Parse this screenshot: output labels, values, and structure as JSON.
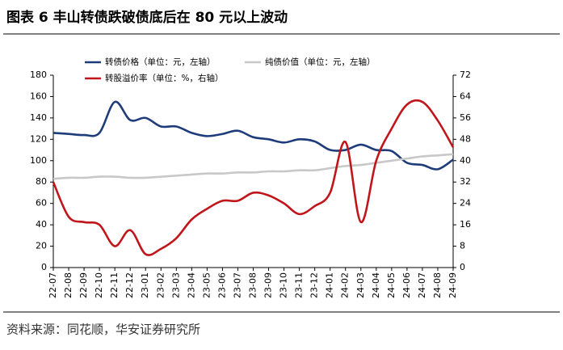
{
  "chart_data": {
    "type": "line",
    "title": "图表 6 丰山转债跌破债底后在 80 元以上波动",
    "source": "资料来源：同花顺，华安证券研究所",
    "categories": [
      "22-07",
      "22-08",
      "22-09",
      "22-10",
      "22-11",
      "22-12",
      "23-01",
      "23-02",
      "23-03",
      "23-04",
      "23-05",
      "23-06",
      "23-07",
      "23-08",
      "23-09",
      "23-10",
      "23-11",
      "23-12",
      "24-01",
      "24-02",
      "24-03",
      "24-04",
      "24-05",
      "24-06",
      "24-07",
      "24-08",
      "24-09"
    ],
    "series": [
      {
        "name": "转债价格（单位：元，左轴）",
        "color": "#1f3c7a",
        "axis": "y",
        "values": [
          126,
          125,
          124,
          126,
          155,
          138,
          140,
          132,
          132,
          126,
          123,
          125,
          128,
          122,
          120,
          117,
          120,
          118,
          110,
          110,
          115,
          110,
          109,
          98,
          96,
          92,
          101
        ]
      },
      {
        "name": "纯债价值（单位：元，左轴）",
        "color": "#c8c8c8",
        "axis": "y",
        "values": [
          83,
          84,
          84,
          85,
          85,
          84,
          84,
          85,
          86,
          87,
          88,
          88,
          89,
          89,
          90,
          90,
          91,
          91,
          93,
          95,
          96,
          98,
          100,
          102,
          104,
          105,
          106
        ]
      },
      {
        "name": "转股溢价率（单位：%，右轴）",
        "color": "#c0161b",
        "axis": "y2",
        "values": [
          32,
          19,
          17,
          16,
          8,
          14,
          5,
          7,
          11,
          18,
          22,
          25,
          25,
          28,
          27,
          24,
          20,
          23,
          28,
          47,
          17,
          40,
          52,
          61,
          62,
          55,
          45
        ]
      }
    ],
    "ylim": [
      0,
      180
    ],
    "yticks": [
      0,
      20,
      40,
      60,
      80,
      100,
      120,
      140,
      160,
      180
    ],
    "y2lim": [
      0,
      72
    ],
    "y2ticks": [
      0,
      8,
      16,
      24,
      32,
      40,
      48,
      56,
      64,
      72
    ],
    "grid": false,
    "legend": "top"
  }
}
